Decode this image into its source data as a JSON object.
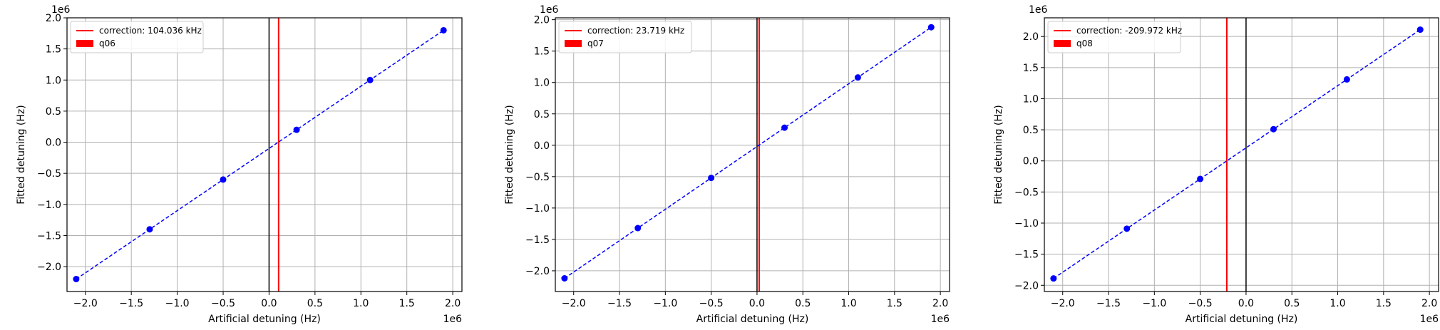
{
  "chart_data": [
    {
      "type": "scatter",
      "xlabel": "Artificial detuning (Hz)",
      "ylabel": "Fitted detuning (Hz)",
      "x_offset_label": "1e6",
      "y_offset_label": "1e6",
      "xlim": [
        -2.2,
        2.1
      ],
      "ylim": [
        -2.4,
        2.0
      ],
      "xticks": [
        -2.0,
        -1.5,
        -1.0,
        -0.5,
        0.0,
        0.5,
        1.0,
        1.5,
        2.0
      ],
      "yticks": [
        -2.0,
        -1.5,
        -1.0,
        -0.5,
        0.0,
        0.5,
        1.0,
        1.5,
        2.0
      ],
      "xtick_labels": [
        "−2.0",
        "−1.5",
        "−1.0",
        "−0.5",
        "0.0",
        "0.5",
        "1.0",
        "1.5",
        "2.0"
      ],
      "ytick_labels": [
        "−2.0",
        "−1.5",
        "−1.0",
        "−0.5",
        "0.0",
        "0.5",
        "1.0",
        "1.5",
        "2.0"
      ],
      "grid": true,
      "legend_position": "top-left",
      "points": {
        "x": [
          -2.1,
          -1.3,
          -0.5,
          0.3,
          1.1,
          1.9
        ],
        "y": [
          -2.2,
          -1.4,
          -0.6,
          0.2,
          1.0,
          1.8
        ],
        "color": "#0000ff"
      },
      "fit_line": {
        "x": [
          -2.1,
          1.9
        ],
        "y": [
          -2.2,
          1.8
        ],
        "color": "#0000ff",
        "style": "dashed"
      },
      "zero_line": {
        "x": 0,
        "color": "#000000"
      },
      "correction_line": {
        "x": 0.104036,
        "color": "#ff0000"
      },
      "legend": [
        {
          "label": "correction: 104.036 kHz",
          "kind": "line",
          "color": "#ff0000"
        },
        {
          "label": "q06",
          "kind": "patch",
          "color": "#ff0000"
        }
      ]
    },
    {
      "type": "scatter",
      "xlabel": "Artificial detuning (Hz)",
      "ylabel": "Fitted detuning (Hz)",
      "x_offset_label": "1e6",
      "y_offset_label": "1e6",
      "xlim": [
        -2.2,
        2.1
      ],
      "ylim": [
        -2.33,
        2.03
      ],
      "xticks": [
        -2.0,
        -1.5,
        -1.0,
        -0.5,
        0.0,
        0.5,
        1.0,
        1.5,
        2.0
      ],
      "yticks": [
        -2.0,
        -1.5,
        -1.0,
        -0.5,
        0.0,
        0.5,
        1.0,
        1.5,
        2.0
      ],
      "xtick_labels": [
        "−2.0",
        "−1.5",
        "−1.0",
        "−0.5",
        "0.0",
        "0.5",
        "1.0",
        "1.5",
        "2.0"
      ],
      "ytick_labels": [
        "−2.0",
        "−1.5",
        "−1.0",
        "−0.5",
        "0.0",
        "0.5",
        "1.0",
        "1.5",
        "2.0"
      ],
      "grid": true,
      "legend_position": "top-left",
      "points": {
        "x": [
          -2.1,
          -1.3,
          -0.5,
          0.3,
          1.1,
          1.9
        ],
        "y": [
          -2.12,
          -1.32,
          -0.52,
          0.28,
          1.08,
          1.88
        ],
        "color": "#0000ff"
      },
      "fit_line": {
        "x": [
          -2.1,
          1.9
        ],
        "y": [
          -2.12,
          1.88
        ],
        "color": "#0000ff",
        "style": "dashed"
      },
      "zero_line": {
        "x": 0,
        "color": "#000000"
      },
      "correction_line": {
        "x": 0.023719,
        "color": "#ff0000"
      },
      "legend": [
        {
          "label": "correction: 23.719 kHz",
          "kind": "line",
          "color": "#ff0000"
        },
        {
          "label": "q07",
          "kind": "patch",
          "color": "#ff0000"
        }
      ]
    },
    {
      "type": "scatter",
      "xlabel": "Artificial detuning (Hz)",
      "ylabel": "Fitted detuning (Hz)",
      "x_offset_label": "1e6",
      "y_offset_label": "1e6",
      "xlim": [
        -2.2,
        2.1
      ],
      "ylim": [
        -2.1,
        2.3
      ],
      "xticks": [
        -2.0,
        -1.5,
        -1.0,
        -0.5,
        0.0,
        0.5,
        1.0,
        1.5,
        2.0
      ],
      "yticks": [
        -2.0,
        -1.5,
        -1.0,
        -0.5,
        0.0,
        0.5,
        1.0,
        1.5,
        2.0
      ],
      "xtick_labels": [
        "−2.0",
        "−1.5",
        "−1.0",
        "−0.5",
        "0.0",
        "0.5",
        "1.0",
        "1.5",
        "2.0"
      ],
      "ytick_labels": [
        "−2.0",
        "−1.5",
        "−1.0",
        "−0.5",
        "0.0",
        "0.5",
        "1.0",
        "1.5",
        "2.0"
      ],
      "grid": true,
      "legend_position": "top-left",
      "points": {
        "x": [
          -2.1,
          -1.3,
          -0.5,
          0.3,
          1.1,
          1.9
        ],
        "y": [
          -1.89,
          -1.09,
          -0.29,
          0.51,
          1.31,
          2.11
        ],
        "color": "#0000ff"
      },
      "fit_line": {
        "x": [
          -2.1,
          1.9
        ],
        "y": [
          -1.89,
          2.11
        ],
        "color": "#0000ff",
        "style": "dashed"
      },
      "zero_line": {
        "x": 0,
        "color": "#000000"
      },
      "correction_line": {
        "x": -0.209972,
        "color": "#ff0000"
      },
      "legend": [
        {
          "label": "correction: -209.972 kHz",
          "kind": "line",
          "color": "#ff0000"
        },
        {
          "label": "q08",
          "kind": "patch",
          "color": "#ff0000"
        }
      ]
    }
  ]
}
